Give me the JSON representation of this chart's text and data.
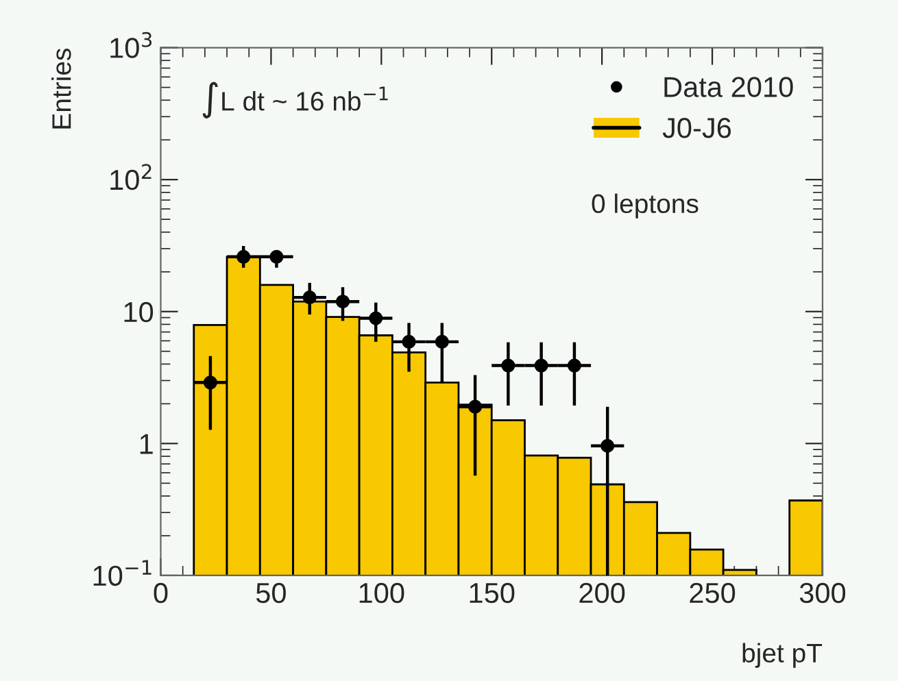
{
  "chart_data": {
    "type": "histogram",
    "xlabel": "bjet pT",
    "ylabel": "Entries",
    "bins": [
      15,
      30,
      45,
      60,
      75,
      90,
      105,
      120,
      135,
      150,
      165,
      180,
      195,
      210,
      225,
      240,
      255,
      270,
      285,
      300
    ],
    "series": [
      {
        "name": "Data 2010",
        "type": "scatter",
        "color": "#000000",
        "marker": "circle",
        "x": [
          22.5,
          37.5,
          52.5,
          67.5,
          82.5,
          97.5,
          112.5,
          127.5,
          142.5,
          157.5,
          172.5,
          187.5,
          202.5
        ],
        "values": [
          2.9,
          26,
          26,
          12.8,
          11.9,
          8.9,
          5.9,
          5.9,
          1.9,
          3.9,
          3.9,
          3.9,
          0.96
        ],
        "errors": [
          [
            1.27,
            4.6
          ],
          [
            21.5,
            31.4
          ],
          [
            21.5,
            28
          ],
          [
            9.5,
            16.5
          ],
          [
            8.5,
            15.3
          ],
          [
            5.9,
            11.7
          ],
          [
            3.5,
            8.2
          ],
          [
            2.9,
            8.2
          ],
          [
            0.57,
            3.3
          ],
          [
            1.94,
            5.85
          ],
          [
            1.94,
            5.85
          ],
          [
            1.94,
            5.85
          ],
          [
            0.1,
            1.9
          ]
        ],
        "xerrors": [
          7.5,
          7.5,
          7.5,
          7.5,
          7.5,
          7.5,
          7.5,
          7.5,
          7.5,
          7.5,
          7.5,
          7.5,
          7.5
        ]
      },
      {
        "name": "J0-J6",
        "type": "histogram",
        "color": "#f8c800",
        "values": [
          7.9,
          26,
          15.9,
          11.9,
          9.1,
          6.6,
          4.9,
          2.9,
          1.97,
          1.5,
          0.81,
          0.78,
          0.49,
          0.36,
          0.21,
          0.157,
          0.11,
          null,
          0.37
        ]
      }
    ],
    "log": "y",
    "xlim": [
      0,
      300
    ],
    "xticks": [
      0,
      50,
      100,
      150,
      200,
      250,
      300
    ],
    "ylim": [
      0.1,
      1000
    ],
    "yticks": [
      {
        "value": 0.1,
        "label": "10$^{−1}$"
      },
      1,
      10,
      {
        "value": 100,
        "label": "10$^{2}$"
      },
      {
        "value": 1000,
        "label": "10$^{3}$"
      }
    ],
    "grid": false,
    "legend": "top right",
    "annotations": [
      "∫L dt ~ 16 nb$^{−1}$",
      "0 leptons"
    ]
  }
}
